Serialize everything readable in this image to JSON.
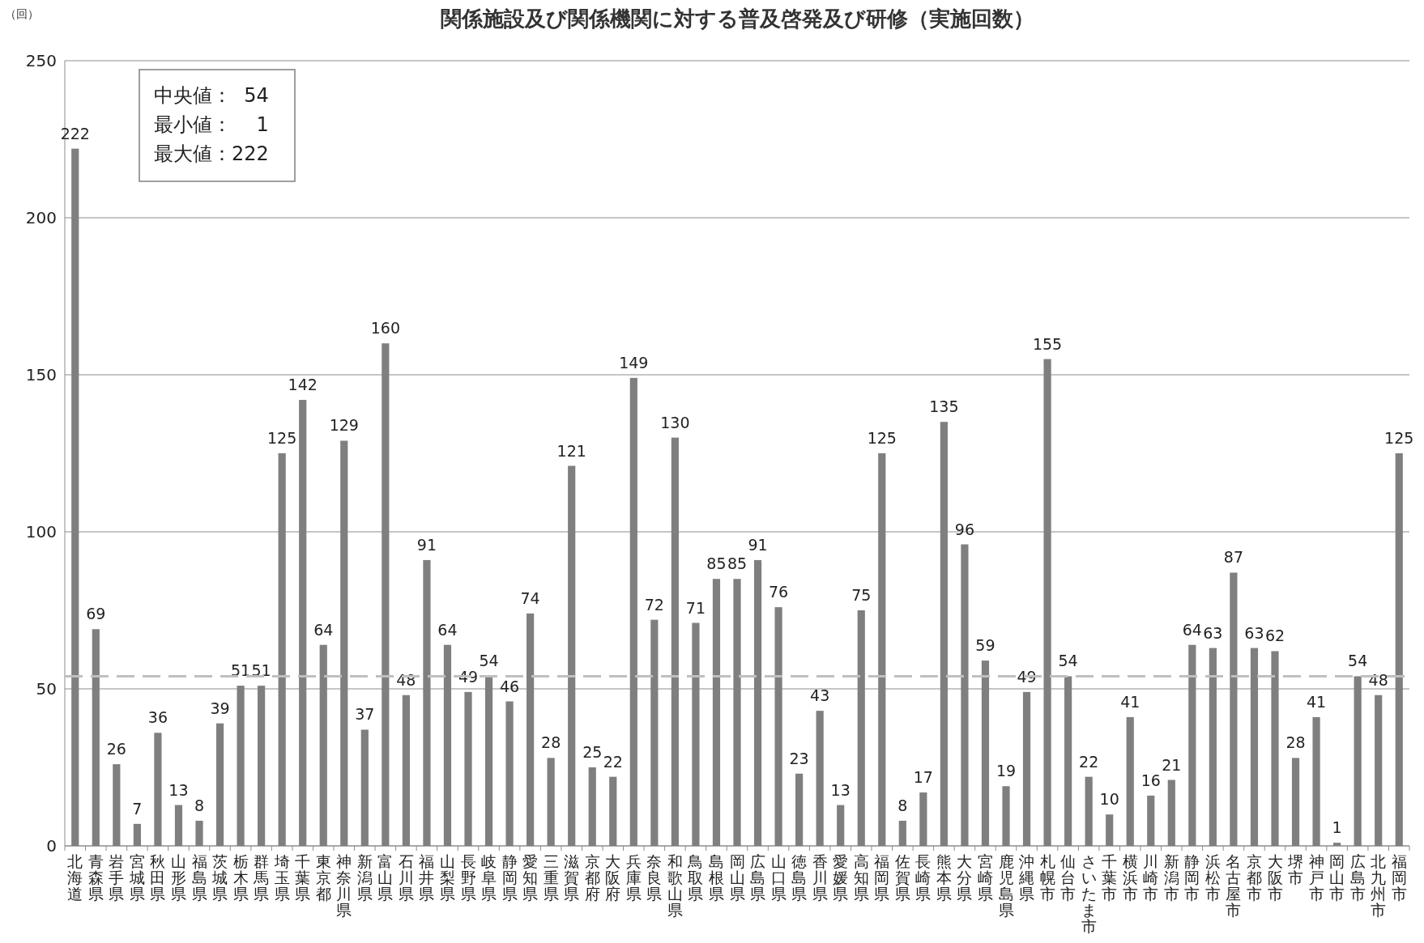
{
  "chart_data": {
    "type": "bar",
    "title": "関係施設及び関係機関に対する普及啓発及び研修（実施回数）",
    "ylabel": "（回）",
    "categories": [
      "北海道",
      "青森県",
      "岩手県",
      "宮城県",
      "秋田県",
      "山形県",
      "福島県",
      "茨城県",
      "栃木県",
      "群馬県",
      "埼玉県",
      "千葉県",
      "東京都",
      "神奈川県",
      "新潟県",
      "富山県",
      "石川県",
      "福井県",
      "山梨県",
      "長野県",
      "岐阜県",
      "静岡県",
      "愛知県",
      "三重県",
      "滋賀県",
      "京都府",
      "大阪府",
      "兵庫県",
      "奈良県",
      "和歌山県",
      "鳥取県",
      "島根県",
      "岡山県",
      "広島県",
      "山口県",
      "徳島県",
      "香川県",
      "愛媛県",
      "高知県",
      "福岡県",
      "佐賀県",
      "長崎県",
      "熊本県",
      "大分県",
      "宮崎県",
      "鹿児島県",
      "沖縄県",
      "札幌市",
      "仙台市",
      "さいたま市",
      "千葉市",
      "横浜市",
      "川崎市",
      "新潟市",
      "静岡市",
      "浜松市",
      "名古屋市",
      "京都市",
      "大阪市",
      "堺市",
      "神戸市",
      "岡山市",
      "広島市",
      "北九州市",
      "福岡市"
    ],
    "values": [
      222,
      69,
      26,
      7,
      36,
      13,
      8,
      39,
      51,
      51,
      125,
      142,
      64,
      129,
      37,
      160,
      48,
      91,
      64,
      49,
      54,
      46,
      74,
      28,
      121,
      25,
      22,
      149,
      72,
      130,
      71,
      85,
      85,
      91,
      76,
      23,
      43,
      13,
      75,
      125,
      8,
      17,
      135,
      96,
      59,
      19,
      49,
      155,
      54,
      22,
      10,
      41,
      16,
      21,
      64,
      63,
      87,
      63,
      62,
      28,
      41,
      1,
      54,
      48,
      125
    ],
    "color": "#7f7f7f",
    "data_labels": true,
    "ylim": [
      0,
      250
    ],
    "yticks": [
      0,
      50,
      100,
      150,
      200,
      250
    ],
    "grid": "y",
    "ref_lines": [
      {
        "axis": "y",
        "value": 54,
        "color": "#bfbfbf",
        "line_style": "dashed"
      }
    ],
    "annotations": [
      "中央値：  54",
      "最小値：    1",
      "最大値：222"
    ]
  }
}
